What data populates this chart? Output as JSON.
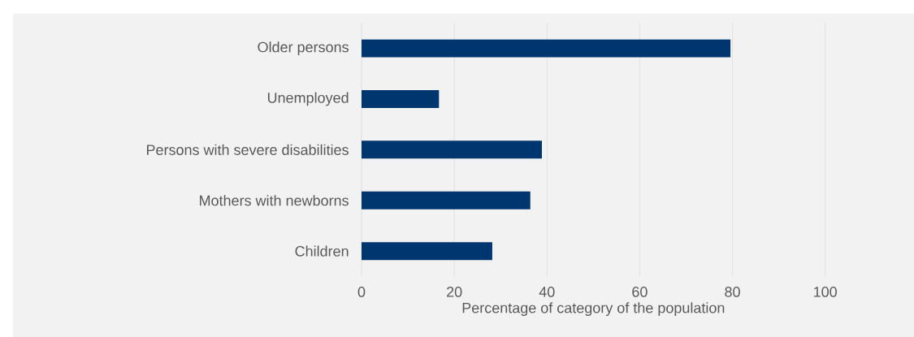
{
  "chart_data": {
    "type": "bar",
    "orientation": "horizontal",
    "xlabel": "Percentage of category of the population",
    "categories": [
      "Older persons",
      "Unemployed",
      "Persons with severe disabilities",
      "Mothers with newborns",
      "Children"
    ],
    "values": [
      79.6,
      16.7,
      38.9,
      36.4,
      28.2
    ],
    "color": "#003670",
    "xlim": [
      0,
      100
    ],
    "xticks": [
      0,
      20,
      40,
      60,
      80,
      100
    ],
    "grid": "x"
  }
}
